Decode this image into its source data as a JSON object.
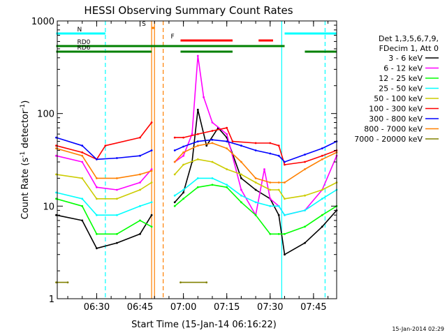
{
  "chart_data": {
    "type": "line",
    "title": "HESSI Observing Summary Count Rates",
    "xlabel": "Start Time (15-Jan-14 06:16:22)",
    "ylabel_main": "Count Rate (s",
    "ylabel_sup1": "-1",
    "ylabel_mid": " detector",
    "ylabel_sup2": "-1",
    "ylabel_end": ")",
    "yscale": "log",
    "xlim": [
      "06:16:22",
      "07:53:00"
    ],
    "ylim": [
      1,
      1000
    ],
    "xticks": [
      "06:30",
      "06:45",
      "07:00",
      "07:15",
      "07:30",
      "07:45"
    ],
    "yticks": [
      {
        "value": 1,
        "label": "1"
      },
      {
        "value": 10,
        "label": "10"
      },
      {
        "value": 100,
        "label": "100"
      },
      {
        "value": 1000,
        "label": "1000"
      }
    ],
    "legend_header": [
      "Det 1,3,5,6,7,9,",
      "FDecim 1, Att 0"
    ],
    "series": [
      {
        "name": "3 - 6 keV",
        "color": "#000000",
        "values": [
          [
            "06:16",
            8
          ],
          [
            "06:25",
            7
          ],
          [
            "06:30",
            3.5
          ],
          [
            "06:37",
            4
          ],
          [
            "06:45",
            5
          ],
          [
            "06:49",
            8
          ],
          [
            "06:51",
            null
          ],
          [
            "06:57",
            11
          ],
          [
            "07:00",
            14
          ],
          [
            "07:03",
            30
          ],
          [
            "07:05",
            110
          ],
          [
            "07:08",
            45
          ],
          [
            "07:12",
            70
          ],
          [
            "07:15",
            55
          ],
          [
            "07:20",
            20
          ],
          [
            "07:25",
            15
          ],
          [
            "07:30",
            12
          ],
          [
            "07:33",
            8
          ],
          [
            "07:35",
            3
          ],
          [
            "07:42",
            4
          ],
          [
            "07:48",
            6
          ],
          [
            "07:53",
            9
          ]
        ]
      },
      {
        "name": "6 - 12 keV",
        "color": "#ff00ff",
        "values": [
          [
            "06:16",
            35
          ],
          [
            "06:25",
            30
          ],
          [
            "06:30",
            16
          ],
          [
            "06:37",
            15
          ],
          [
            "06:45",
            18
          ],
          [
            "06:49",
            25
          ],
          [
            "06:51",
            null
          ],
          [
            "06:57",
            30
          ],
          [
            "07:00",
            35
          ],
          [
            "07:03",
            60
          ],
          [
            "07:05",
            420
          ],
          [
            "07:07",
            150
          ],
          [
            "07:10",
            80
          ],
          [
            "07:15",
            60
          ],
          [
            "07:20",
            15
          ],
          [
            "07:25",
            8
          ],
          [
            "07:28",
            25
          ],
          [
            "07:30",
            12
          ],
          [
            "07:33",
            10
          ],
          [
            "07:35",
            8
          ],
          [
            "07:42",
            9
          ],
          [
            "07:48",
            15
          ],
          [
            "07:53",
            35
          ]
        ]
      },
      {
        "name": "12 - 25 keV",
        "color": "#00ff00",
        "values": [
          [
            "06:16",
            12
          ],
          [
            "06:25",
            10
          ],
          [
            "06:30",
            5
          ],
          [
            "06:37",
            5
          ],
          [
            "06:45",
            7
          ],
          [
            "06:49",
            6
          ],
          [
            "06:51",
            null
          ],
          [
            "06:57",
            10
          ],
          [
            "07:00",
            12
          ],
          [
            "07:05",
            16
          ],
          [
            "07:10",
            17
          ],
          [
            "07:15",
            16
          ],
          [
            "07:20",
            11
          ],
          [
            "07:25",
            8
          ],
          [
            "07:30",
            5
          ],
          [
            "07:33",
            5
          ],
          [
            "07:35",
            5
          ],
          [
            "07:42",
            6
          ],
          [
            "07:48",
            8
          ],
          [
            "07:53",
            10
          ]
        ]
      },
      {
        "name": "25 - 50 keV",
        "color": "#00ffff",
        "values": [
          [
            "06:16",
            14
          ],
          [
            "06:25",
            12
          ],
          [
            "06:30",
            8
          ],
          [
            "06:37",
            8
          ],
          [
            "06:45",
            10
          ],
          [
            "06:49",
            11
          ],
          [
            "06:51",
            null
          ],
          [
            "06:57",
            13
          ],
          [
            "07:00",
            15
          ],
          [
            "07:05",
            20
          ],
          [
            "07:10",
            20
          ],
          [
            "07:15",
            17
          ],
          [
            "07:20",
            13
          ],
          [
            "07:25",
            11
          ],
          [
            "07:30",
            10
          ],
          [
            "07:33",
            10
          ],
          [
            "07:35",
            8
          ],
          [
            "07:42",
            9
          ],
          [
            "07:48",
            12
          ],
          [
            "07:53",
            15
          ]
        ]
      },
      {
        "name": "50 - 100 keV",
        "color": "#cccc00",
        "values": [
          [
            "06:16",
            22
          ],
          [
            "06:25",
            20
          ],
          [
            "06:30",
            12
          ],
          [
            "06:37",
            12
          ],
          [
            "06:45",
            15
          ],
          [
            "06:49",
            18
          ],
          [
            "06:51",
            null
          ],
          [
            "06:57",
            22
          ],
          [
            "07:00",
            28
          ],
          [
            "07:05",
            32
          ],
          [
            "07:10",
            30
          ],
          [
            "07:15",
            25
          ],
          [
            "07:20",
            22
          ],
          [
            "07:25",
            18
          ],
          [
            "07:30",
            15
          ],
          [
            "07:33",
            15
          ],
          [
            "07:35",
            12
          ],
          [
            "07:42",
            13
          ],
          [
            "07:48",
            15
          ],
          [
            "07:53",
            18
          ]
        ]
      },
      {
        "name": "100 - 300 keV",
        "color": "#ff0000",
        "values": [
          [
            "06:16",
            45
          ],
          [
            "06:25",
            38
          ],
          [
            "06:30",
            32
          ],
          [
            "06:33",
            45
          ],
          [
            "06:45",
            55
          ],
          [
            "06:49",
            80
          ],
          [
            "06:51",
            null
          ],
          [
            "06:57",
            55
          ],
          [
            "07:00",
            55
          ],
          [
            "07:05",
            60
          ],
          [
            "07:10",
            65
          ],
          [
            "07:15",
            70
          ],
          [
            "07:17",
            50
          ],
          [
            "07:25",
            48
          ],
          [
            "07:30",
            48
          ],
          [
            "07:33",
            45
          ],
          [
            "07:35",
            28
          ],
          [
            "07:42",
            30
          ],
          [
            "07:48",
            35
          ],
          [
            "07:53",
            40
          ]
        ]
      },
      {
        "name": "300 - 800 keV",
        "color": "#0000ff",
        "values": [
          [
            "06:16",
            55
          ],
          [
            "06:25",
            45
          ],
          [
            "06:30",
            32
          ],
          [
            "06:37",
            33
          ],
          [
            "06:45",
            35
          ],
          [
            "06:49",
            40
          ],
          [
            "06:51",
            null
          ],
          [
            "06:57",
            40
          ],
          [
            "07:00",
            44
          ],
          [
            "07:05",
            50
          ],
          [
            "07:10",
            52
          ],
          [
            "07:15",
            50
          ],
          [
            "07:20",
            45
          ],
          [
            "07:25",
            40
          ],
          [
            "07:30",
            37
          ],
          [
            "07:33",
            35
          ],
          [
            "07:35",
            30
          ],
          [
            "07:42",
            36
          ],
          [
            "07:48",
            42
          ],
          [
            "07:53",
            50
          ]
        ]
      },
      {
        "name": "800 - 7000 keV",
        "color": "#ff8000",
        "values": [
          [
            "06:16",
            42
          ],
          [
            "06:25",
            35
          ],
          [
            "06:30",
            20
          ],
          [
            "06:37",
            20
          ],
          [
            "06:45",
            22
          ],
          [
            "06:49",
            24
          ],
          [
            "06:51",
            null
          ],
          [
            "06:57",
            30
          ],
          [
            "07:00",
            38
          ],
          [
            "07:05",
            45
          ],
          [
            "07:10",
            48
          ],
          [
            "07:15",
            42
          ],
          [
            "07:20",
            30
          ],
          [
            "07:25",
            20
          ],
          [
            "07:30",
            18
          ],
          [
            "07:33",
            18
          ],
          [
            "07:35",
            18
          ],
          [
            "07:42",
            25
          ],
          [
            "07:48",
            32
          ],
          [
            "07:53",
            38
          ]
        ]
      },
      {
        "name": "7000 - 20000 keV",
        "color": "#808000",
        "values": [
          [
            "06:16",
            1.5
          ],
          [
            "06:20",
            1.5
          ],
          [
            "06:49",
            null
          ],
          [
            "06:59",
            1.5
          ],
          [
            "07:08",
            1.5
          ]
        ]
      }
    ],
    "flags": [
      {
        "label": "N",
        "color": "#00ffff",
        "segments": [
          [
            "06:16",
            "06:33"
          ],
          [
            "07:35",
            "07:53"
          ]
        ]
      },
      {
        "label": "RD0",
        "color": "#008000",
        "segments": [
          [
            "06:16",
            "07:35"
          ]
        ]
      },
      {
        "label": "RD6",
        "color": "#008000",
        "segments": [
          [
            "06:16",
            "06:49"
          ],
          [
            "06:59",
            "07:17"
          ],
          [
            "07:42",
            "07:53"
          ]
        ]
      },
      {
        "label": "S",
        "color": "#ff8000",
        "segments": [
          [
            "06:49",
            "06:50"
          ]
        ]
      },
      {
        "label": "F",
        "color": "#ff0000",
        "segments": [
          [
            "06:59",
            "07:17"
          ],
          [
            "07:26",
            "07:31"
          ]
        ]
      }
    ],
    "vertical_markers": [
      {
        "time": "06:33",
        "color": "#00ffff",
        "style": "dashed"
      },
      {
        "time": "06:49",
        "color": "#ff8000",
        "style": "solid"
      },
      {
        "time": "06:50",
        "color": "#ff8000",
        "style": "solid"
      },
      {
        "time": "06:53",
        "color": "#ff8000",
        "style": "dashed"
      },
      {
        "time": "07:34",
        "color": "#00ffff",
        "style": "solid"
      },
      {
        "time": "07:49",
        "color": "#00ffff",
        "style": "dashed"
      }
    ],
    "timestamp": "15-Jan-2014 02:29"
  }
}
